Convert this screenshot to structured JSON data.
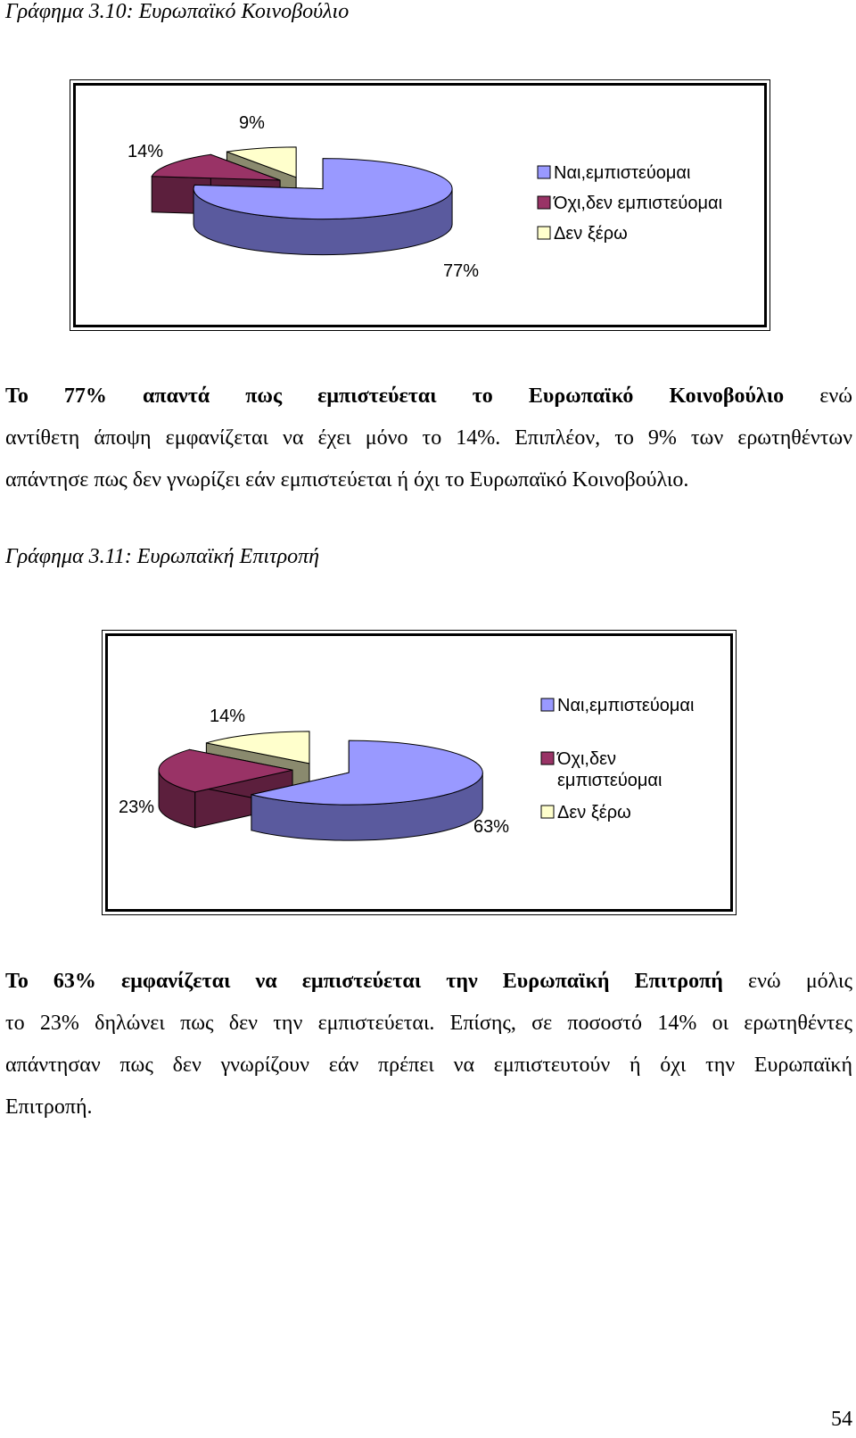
{
  "figure1": {
    "caption": "Γράφημα 3.10: Ευρωπαϊκό Κοινοβούλιο"
  },
  "figure2": {
    "caption": "Γράφημα 3.11: Ευρωπαϊκή Επιτροπή"
  },
  "colors": {
    "yes": "#9999FF",
    "yes_side": "#5A5A9E",
    "no": "#993366",
    "no_side": "#5C1F3D",
    "dk": "#FFFFCC",
    "dk_side": "#8A8A6E"
  },
  "chart_data": [
    {
      "type": "pie",
      "title": "",
      "labels": [
        "Ναι,εμπιστεύομαι",
        "Όχι,δεν εμπιστεύομαι",
        "Δεν ξέρω"
      ],
      "values": [
        77,
        14,
        9
      ],
      "data_labels": [
        "77%",
        "14%",
        "9%"
      ],
      "legend": "right",
      "exploded": true,
      "three_d": true
    },
    {
      "type": "pie",
      "title": "",
      "labels": [
        "Ναι,εμπιστεύομαι",
        "Όχι,δεν εμπιστεύομαι",
        "Δεν ξέρω"
      ],
      "legend_lines": [
        [
          "Ναι,εμπιστεύομαι"
        ],
        [
          "Όχι,δεν",
          "εμπιστεύομαι"
        ],
        [
          "Δεν ξέρω"
        ]
      ],
      "values": [
        63,
        23,
        14
      ],
      "data_labels": [
        "63%",
        "23%",
        "14%"
      ],
      "legend": "right",
      "exploded": true,
      "three_d": true
    }
  ],
  "paragraph1": {
    "bold": "Το 77% απαντά πως εμπιστεύεται το Ευρωπαϊκό Κοινοβούλιο",
    "l1_rest": " ενώ",
    "l2": "αντίθετη άποψη εμφανίζεται να έχει μόνο το 14%. Επιπλέον, το 9% των ερωτηθέντων",
    "l3": "απάντησε πως δεν γνωρίζει εάν εμπιστεύεται ή όχι το Ευρωπαϊκό Κοινοβούλιο."
  },
  "paragraph2": {
    "bold": "Το 63% εμφανίζεται να εμπιστεύεται την Ευρωπαϊκή Επιτροπή",
    "l1_rest": " ενώ μόλις",
    "l2": "το 23% δηλώνει πως δεν την εμπιστεύεται. Επίσης, σε ποσοστό 14% οι ερωτηθέντες",
    "l3": "απάντησαν πως δεν γνωρίζουν εάν πρέπει να εμπιστευτούν ή όχι την Ευρωπαϊκή",
    "l4": "Επιτροπή."
  },
  "page_number": "54"
}
